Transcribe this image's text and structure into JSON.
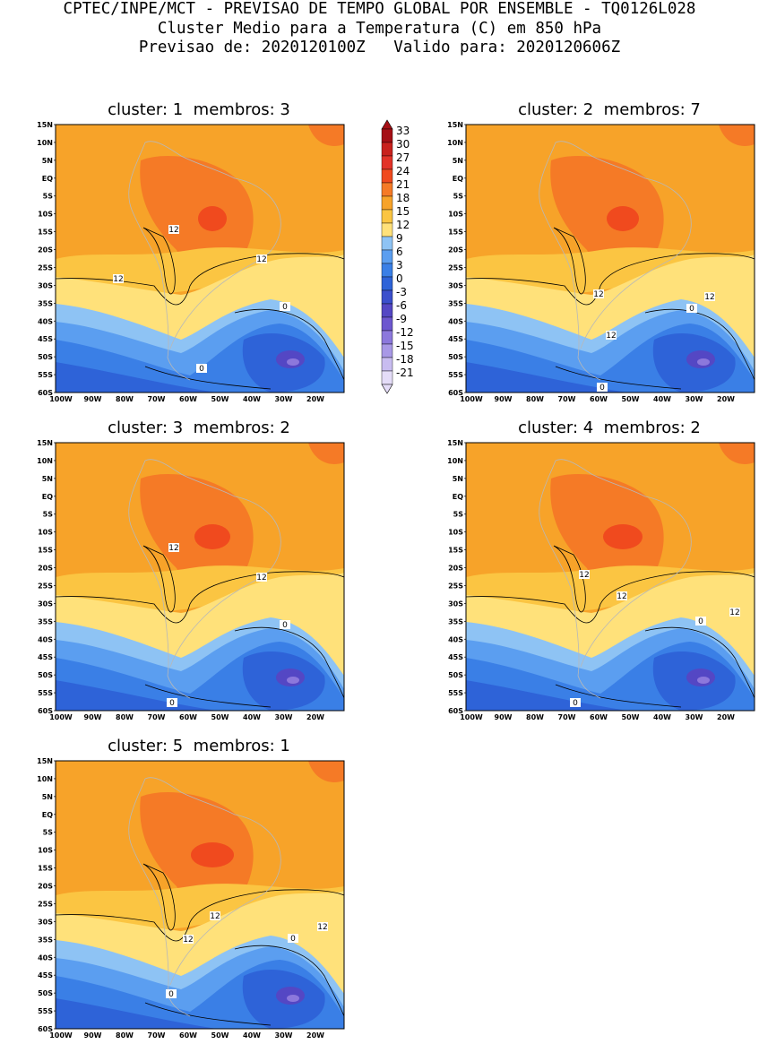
{
  "header": {
    "line1": "CPTEC/INPE/MCT - PREVISAO DE TEMPO GLOBAL POR ENSEMBLE - TQ0126L028",
    "line2": "Cluster Medio para a Temperatura (C) em 850 hPa",
    "line3": "Previsao de: 2020120100Z   Valido para: 2020120606Z"
  },
  "panels": [
    {
      "title": "cluster: 1  membros: 3",
      "contour_labels": [
        "12",
        "12",
        "12",
        "0",
        "0"
      ]
    },
    {
      "title": "cluster: 2  membros: 7",
      "contour_labels": [
        "12",
        "12",
        "12",
        "0",
        "0"
      ]
    },
    {
      "title": "cluster: 3  membros: 2",
      "contour_labels": [
        "12",
        "12",
        "0",
        "0"
      ]
    },
    {
      "title": "cluster: 4  membros: 2",
      "contour_labels": [
        "12",
        "12",
        "12",
        "0",
        "0"
      ]
    },
    {
      "title": "cluster: 5  membros: 1",
      "contour_labels": [
        "12",
        "12",
        "12",
        "0",
        "0"
      ]
    }
  ],
  "axes": {
    "lat_labels": [
      "15N",
      "10N",
      "5N",
      "EQ",
      "5S",
      "10S",
      "15S",
      "20S",
      "25S",
      "30S",
      "35S",
      "40S",
      "45S",
      "50S",
      "55S",
      "60S"
    ],
    "lon_labels": [
      "100W",
      "90W",
      "80W",
      "70W",
      "60W",
      "50W",
      "40W",
      "30W",
      "20W"
    ]
  },
  "colorbar": {
    "labels": [
      "33",
      "30",
      "27",
      "24",
      "21",
      "18",
      "15",
      "12",
      "9",
      "6",
      "3",
      "0",
      "-3",
      "-6",
      "-9",
      "-12",
      "-15",
      "-18",
      "-21"
    ],
    "colors": [
      "#a50f15",
      "#c8211d",
      "#e23228",
      "#f04a1e",
      "#f57a26",
      "#f7a329",
      "#fbc542",
      "#ffe17a",
      "#8ec3f4",
      "#5b9ef0",
      "#3a7fe6",
      "#2e63d8",
      "#3b4fcc",
      "#5447c4",
      "#6d57cf",
      "#8c78dc",
      "#a898e6",
      "#c8bcf0",
      "#e4dcf8"
    ]
  }
}
